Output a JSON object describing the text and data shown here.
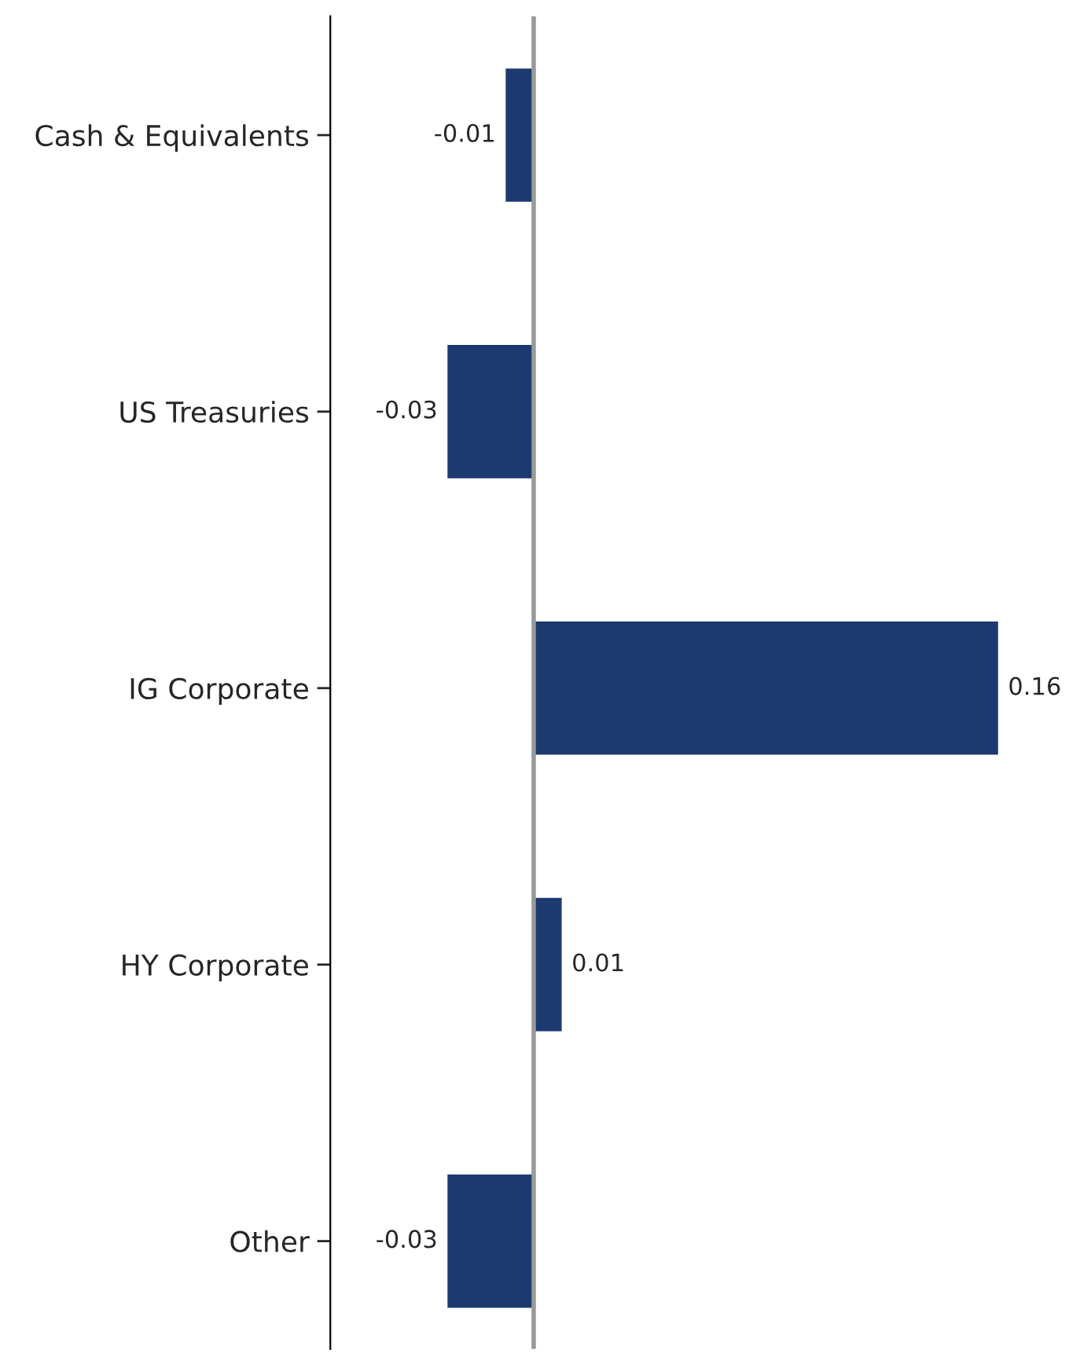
{
  "chart_data": {
    "type": "bar",
    "orientation": "horizontal",
    "categories": [
      "Cash & Equivalents",
      "US Treasuries",
      "IG Corporate",
      "HY Corporate",
      "Other"
    ],
    "values": [
      -0.01,
      -0.03,
      0.16,
      0.01,
      -0.03
    ],
    "color": "#1c3a70",
    "data_labels": true,
    "tick_labels": "y",
    "grid": false,
    "legend": false,
    "ref_lines": [
      {
        "axis": "x",
        "value": 0,
        "color": "#999999"
      }
    ]
  }
}
